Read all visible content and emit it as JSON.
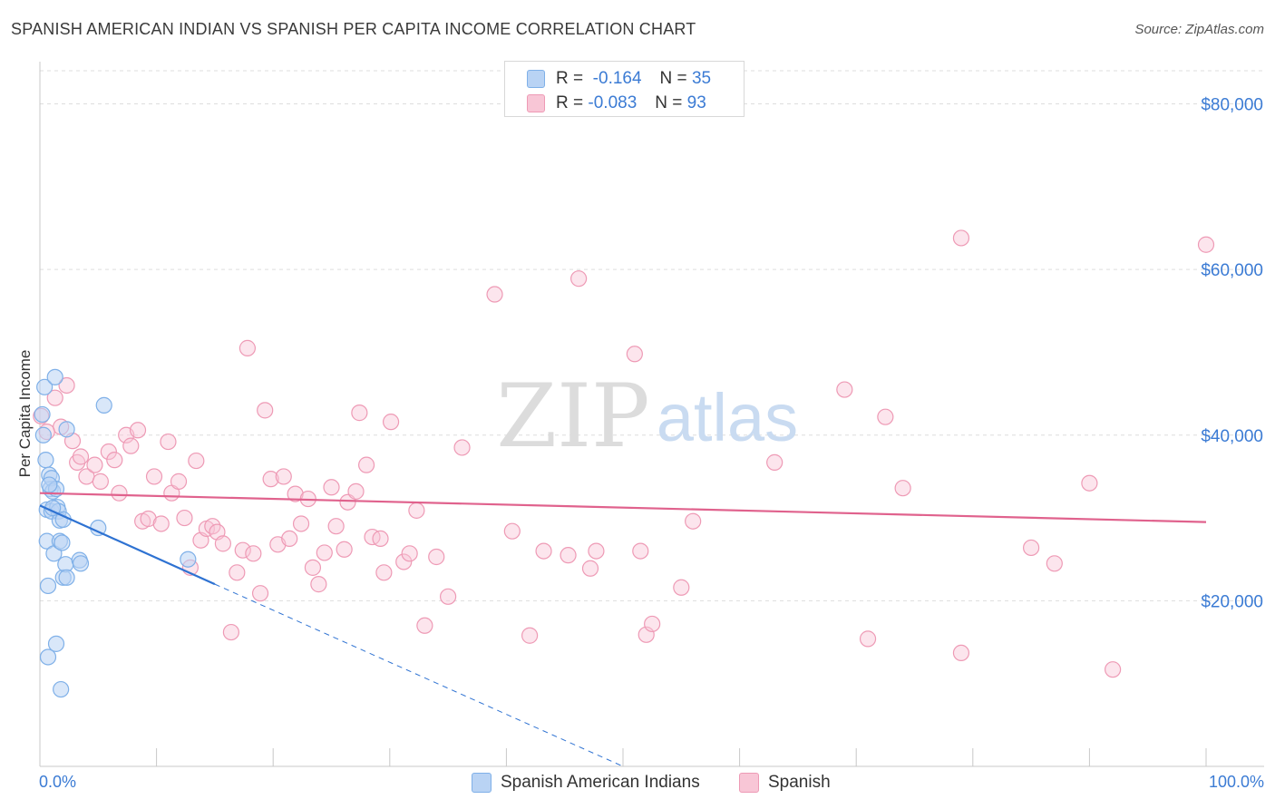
{
  "title": "SPANISH AMERICAN INDIAN VS SPANISH PER CAPITA INCOME CORRELATION CHART",
  "source": "Source: ZipAtlas.com",
  "watermark": {
    "zip": "ZIP",
    "atlas": "atlas"
  },
  "colors": {
    "blue": "#7fb0e8",
    "blue_fill": "#b9d3f4",
    "blue_line": "#2e72d2",
    "pink": "#ee9ab5",
    "pink_fill": "#f8c6d6",
    "pink_line": "#e0628d",
    "axis_text": "#3b7bd4"
  },
  "legend_top": {
    "rows": [
      {
        "r_label": "R =",
        "r_value": "-0.164",
        "n_label": "N =",
        "n_value": "35"
      },
      {
        "r_label": "R =",
        "r_value": "-0.083",
        "n_label": "N =",
        "n_value": "93"
      }
    ]
  },
  "legend_bottom": {
    "items": [
      "Spanish American Indians",
      "Spanish"
    ]
  },
  "chart_data": {
    "type": "scatter",
    "title": "SPANISH AMERICAN INDIAN VS SPANISH PER CAPITA INCOME CORRELATION CHART",
    "xlabel": "",
    "ylabel": "Per Capita Income",
    "xlim": [
      0,
      100
    ],
    "ylim": [
      0,
      84000
    ],
    "x_tick_labels": [
      "0.0%",
      "100.0%"
    ],
    "y_ticks": [
      20000,
      40000,
      60000,
      80000
    ],
    "y_tick_labels": [
      "$20,000",
      "$40,000",
      "$60,000",
      "$80,000"
    ],
    "grid": true,
    "series": [
      {
        "name": "Spanish American Indians",
        "points": [
          [
            0.2,
            42500
          ],
          [
            0.3,
            40000
          ],
          [
            0.4,
            45800
          ],
          [
            0.5,
            37000
          ],
          [
            0.6,
            27200
          ],
          [
            0.6,
            31000
          ],
          [
            0.7,
            21800
          ],
          [
            0.7,
            13200
          ],
          [
            0.8,
            35200
          ],
          [
            0.9,
            33500
          ],
          [
            1,
            34800
          ],
          [
            1,
            30800
          ],
          [
            1.1,
            33200
          ],
          [
            1.2,
            25700
          ],
          [
            1.3,
            47000
          ],
          [
            1.4,
            33500
          ],
          [
            1.4,
            14800
          ],
          [
            1.5,
            31300
          ],
          [
            1.6,
            30800
          ],
          [
            1.7,
            27200
          ],
          [
            1.7,
            29700
          ],
          [
            1.8,
            9300
          ],
          [
            1.9,
            27000
          ],
          [
            2,
            29800
          ],
          [
            2,
            22800
          ],
          [
            2.2,
            24400
          ],
          [
            2.3,
            40700
          ],
          [
            2.3,
            22800
          ],
          [
            3.4,
            24900
          ],
          [
            3.5,
            24500
          ],
          [
            5,
            28800
          ],
          [
            5.5,
            43600
          ],
          [
            12.7,
            25000
          ],
          [
            1.1,
            31200
          ],
          [
            0.8,
            34000
          ]
        ],
        "trend": {
          "x0": 0,
          "y0": 31500,
          "x1": 15,
          "y1": 22000,
          "dashed_to_x": 50,
          "dashed_to_y": 0
        }
      },
      {
        "name": "Spanish",
        "points": [
          [
            0.1,
            42300
          ],
          [
            1.3,
            44500
          ],
          [
            1.8,
            41000
          ],
          [
            2.3,
            46000
          ],
          [
            2.8,
            39300
          ],
          [
            3.2,
            36700
          ],
          [
            3.5,
            37400
          ],
          [
            4,
            35000
          ],
          [
            4.7,
            36400
          ],
          [
            5.2,
            34400
          ],
          [
            5.9,
            38000
          ],
          [
            6.4,
            37000
          ],
          [
            6.8,
            33000
          ],
          [
            7.4,
            40000
          ],
          [
            7.8,
            38700
          ],
          [
            8.4,
            40600
          ],
          [
            8.8,
            29600
          ],
          [
            9.3,
            29900
          ],
          [
            9.8,
            35000
          ],
          [
            10.4,
            29300
          ],
          [
            11,
            39200
          ],
          [
            11.3,
            33000
          ],
          [
            11.9,
            34400
          ],
          [
            12.4,
            30000
          ],
          [
            12.9,
            24000
          ],
          [
            13.4,
            36900
          ],
          [
            13.8,
            27300
          ],
          [
            14.3,
            28700
          ],
          [
            14.8,
            29000
          ],
          [
            15.2,
            28300
          ],
          [
            15.7,
            26900
          ],
          [
            16.4,
            16200
          ],
          [
            16.9,
            23400
          ],
          [
            17.4,
            26100
          ],
          [
            17.8,
            50500
          ],
          [
            18.3,
            25700
          ],
          [
            18.9,
            20900
          ],
          [
            19.3,
            43000
          ],
          [
            19.8,
            34700
          ],
          [
            20.4,
            26800
          ],
          [
            20.9,
            35000
          ],
          [
            21.4,
            27500
          ],
          [
            21.9,
            32900
          ],
          [
            22.4,
            29300
          ],
          [
            23,
            32300
          ],
          [
            23.4,
            24000
          ],
          [
            23.9,
            22000
          ],
          [
            24.4,
            25800
          ],
          [
            25,
            33700
          ],
          [
            25.4,
            29000
          ],
          [
            26.1,
            26200
          ],
          [
            26.4,
            31900
          ],
          [
            27.1,
            33200
          ],
          [
            27.4,
            42700
          ],
          [
            28,
            36400
          ],
          [
            28.5,
            27700
          ],
          [
            29.2,
            27500
          ],
          [
            29.5,
            23400
          ],
          [
            30.1,
            41600
          ],
          [
            31.2,
            24700
          ],
          [
            31.7,
            25700
          ],
          [
            32.3,
            30900
          ],
          [
            33,
            17000
          ],
          [
            34,
            25300
          ],
          [
            35,
            20500
          ],
          [
            36.2,
            38500
          ],
          [
            39,
            57000
          ],
          [
            40.5,
            28400
          ],
          [
            42,
            15800
          ],
          [
            43.2,
            26000
          ],
          [
            45.3,
            25500
          ],
          [
            46.2,
            58900
          ],
          [
            47.2,
            23900
          ],
          [
            47.7,
            26000
          ],
          [
            51,
            49800
          ],
          [
            51.5,
            26000
          ],
          [
            52,
            15900
          ],
          [
            52.5,
            17200
          ],
          [
            55,
            21600
          ],
          [
            56,
            29600
          ],
          [
            63,
            36700
          ],
          [
            69,
            45500
          ],
          [
            71,
            15400
          ],
          [
            72.5,
            42200
          ],
          [
            74,
            33600
          ],
          [
            79,
            63800
          ],
          [
            79,
            13700
          ],
          [
            85,
            26400
          ],
          [
            87,
            24500
          ],
          [
            90,
            34200
          ],
          [
            92,
            11700
          ],
          [
            100,
            63000
          ],
          [
            0.6,
            40400
          ]
        ],
        "trend": {
          "x0": 0,
          "y0": 33000,
          "x1": 100,
          "y1": 29500
        }
      }
    ]
  }
}
